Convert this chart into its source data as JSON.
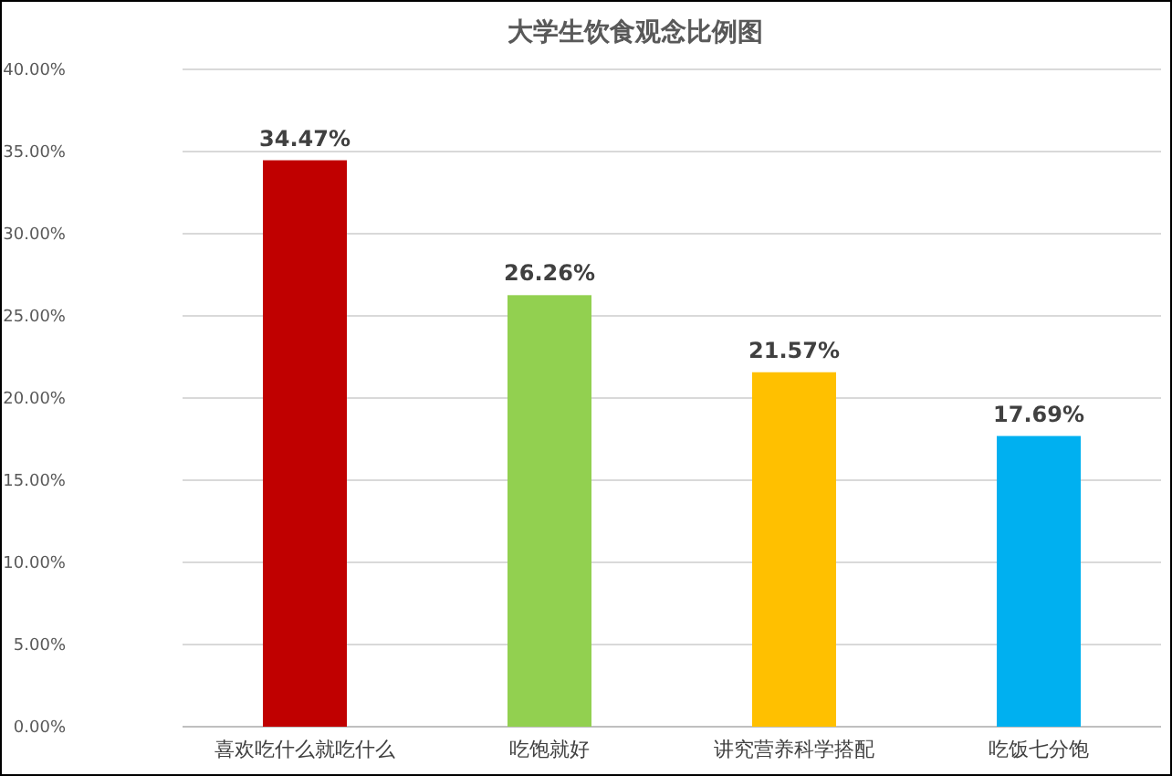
{
  "chart_data": {
    "type": "bar",
    "title": "大学生饮食观念比例图",
    "categories": [
      "喜欢吃什么就吃什么",
      "吃饱就好",
      "讲究营养科学搭配",
      "吃饭七分饱"
    ],
    "values": [
      34.47,
      26.26,
      21.57,
      17.69
    ],
    "colors": [
      "#c00000",
      "#92d050",
      "#ffc000",
      "#00b0f0"
    ],
    "value_labels": [
      "34.47%",
      "26.26%",
      "21.57%",
      "17.69%"
    ],
    "ylim": [
      0,
      40
    ],
    "yticks": [
      {
        "value": 0,
        "label": "0.00%"
      },
      {
        "value": 5,
        "label": "5.00%"
      },
      {
        "value": 10,
        "label": "10.00%"
      },
      {
        "value": 15,
        "label": "15.00%"
      },
      {
        "value": 20,
        "label": "20.00%"
      },
      {
        "value": 25,
        "label": "25.00%"
      },
      {
        "value": 30,
        "label": "30.00%"
      },
      {
        "value": 35,
        "label": "35.00%"
      },
      {
        "value": 40,
        "label": "40.00%"
      }
    ],
    "grid": "y"
  }
}
